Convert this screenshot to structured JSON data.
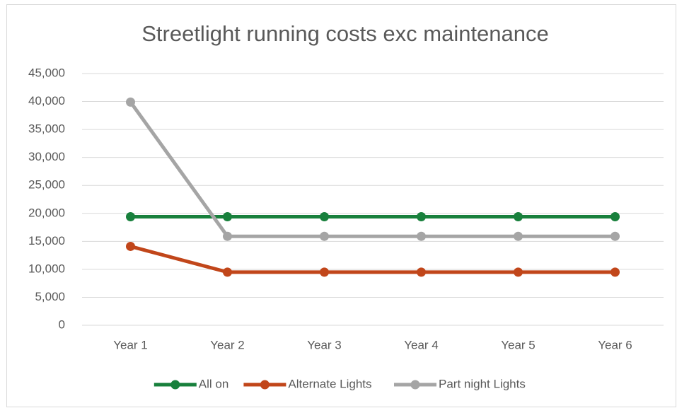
{
  "chart_data": {
    "type": "line",
    "title": "Streetlight running costs exc maintenance",
    "categories": [
      "Year 1",
      "Year 2",
      "Year 3",
      "Year 4",
      "Year 5",
      "Year 6"
    ],
    "series": [
      {
        "name": "All on",
        "color": "#18803c",
        "values": [
          19400,
          19400,
          19400,
          19400,
          19400,
          19400
        ]
      },
      {
        "name": "Alternate Lights",
        "color": "#c1461a",
        "values": [
          14100,
          9500,
          9500,
          9500,
          9500,
          9500
        ]
      },
      {
        "name": "Part night Lights",
        "color": "#a5a5a5",
        "values": [
          39900,
          15900,
          15900,
          15900,
          15900,
          15900
        ]
      }
    ],
    "ylim": [
      0,
      45000
    ],
    "yticks": [
      0,
      {
        "value": 5000,
        "label": "5,000"
      },
      {
        "value": 10000,
        "label": "10,000"
      },
      {
        "value": 15000,
        "label": "15,000"
      },
      {
        "value": 20000,
        "label": "20,000"
      },
      {
        "value": 25000,
        "label": "25,000"
      },
      {
        "value": 30000,
        "label": "30,000"
      },
      {
        "value": 35000,
        "label": "35,000"
      },
      {
        "value": 40000,
        "label": "40,000"
      },
      {
        "value": 45000,
        "label": "45,000"
      }
    ],
    "grid": true,
    "legend": "bottom"
  }
}
